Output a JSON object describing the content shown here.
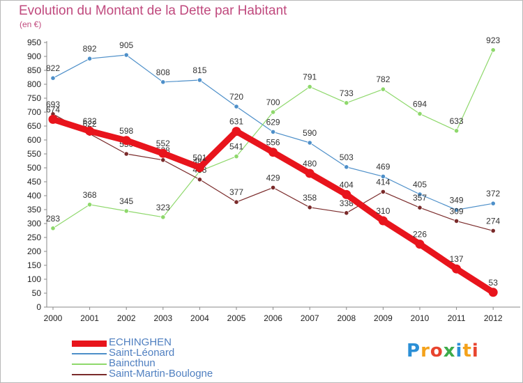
{
  "title": "Evolution du Montant de la Dette par Habitant",
  "subtitle": "(en €)",
  "logo": {
    "text": "Proxiti",
    "colors": [
      "#2b8fd6",
      "#f4a21b",
      "#e8442e",
      "#3dab4a",
      "#2b8fd6",
      "#f4a21b",
      "#e8442e"
    ]
  },
  "chart_data": {
    "type": "line",
    "x": [
      "2000",
      "2001",
      "2002",
      "2003",
      "2004",
      "2005",
      "2006",
      "2007",
      "2008",
      "2009",
      "2010",
      "2011",
      "2012"
    ],
    "ylim": [
      0,
      950
    ],
    "yticks": [
      0,
      50,
      100,
      150,
      200,
      250,
      300,
      350,
      400,
      450,
      500,
      550,
      600,
      650,
      700,
      750,
      800,
      850,
      900,
      950
    ],
    "grid": false,
    "legend_position": "bottom-left",
    "series": [
      {
        "name": "ECHINGHEN",
        "color": "#e8141c",
        "values": [
          674,
          632,
          598,
          552,
          501,
          631,
          556,
          480,
          404,
          310,
          226,
          137,
          53
        ]
      },
      {
        "name": "Saint-Léonard",
        "color": "#4d8fc9",
        "values": [
          822,
          892,
          905,
          808,
          815,
          720,
          629,
          590,
          503,
          469,
          405,
          349,
          372
        ]
      },
      {
        "name": "Baincthun",
        "color": "#8ed86b",
        "values": [
          283,
          368,
          345,
          323,
          488,
          541,
          700,
          791,
          733,
          782,
          694,
          633,
          923
        ]
      },
      {
        "name": "Saint-Martin-Boulogne",
        "color": "#7a2a2a",
        "values": [
          693,
          622,
          550,
          528,
          458,
          377,
          429,
          358,
          338,
          414,
          357,
          309,
          274
        ]
      }
    ]
  }
}
